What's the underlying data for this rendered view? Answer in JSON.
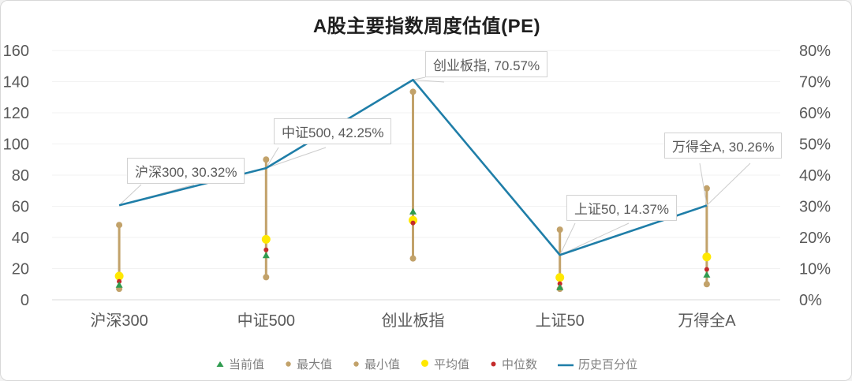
{
  "window": {
    "background": "#ffffff",
    "border_color": "#d8d8d8"
  },
  "chart_data": {
    "type": "combo-range-scatter-line",
    "title": "A股主要指数周度估值(PE)",
    "categories": [
      "沪深300",
      "中证500",
      "创业板指",
      "上证50",
      "万得全A"
    ],
    "left_axis": {
      "min": 0,
      "max": 160,
      "step": 20,
      "tick_labels": [
        "160",
        "140",
        "120",
        "100",
        "80",
        "60",
        "40",
        "20",
        "0"
      ]
    },
    "right_axis": {
      "min": 0,
      "max": 80,
      "step": 10,
      "tick_labels": [
        "80%",
        "70%",
        "60%",
        "50%",
        "40%",
        "30%",
        "20%",
        "10%",
        "0%"
      ]
    },
    "series": [
      {
        "name": "当前值",
        "marker": "triangle",
        "color": "#2F9B4F",
        "axis": "left",
        "values": [
          9.5,
          28.5,
          56.5,
          8,
          16
        ]
      },
      {
        "name": "最大值",
        "marker": "circle",
        "color": "#C2A26A",
        "axis": "left",
        "values": [
          48,
          90,
          133.5,
          45,
          71.5
        ]
      },
      {
        "name": "最小值",
        "marker": "circle",
        "color": "#C2A26A",
        "axis": "left",
        "values": [
          7,
          14.5,
          26.5,
          7,
          10
        ]
      },
      {
        "name": "平均值",
        "marker": "circle-large",
        "color": "#FFE800",
        "axis": "left",
        "values": [
          15.2,
          38.8,
          51,
          14.3,
          27.5
        ]
      },
      {
        "name": "中位数",
        "marker": "dot",
        "color": "#C42B2B",
        "axis": "left",
        "values": [
          11.8,
          32,
          49.3,
          10.3,
          19.5
        ]
      },
      {
        "name": "历史百分位",
        "marker": "line",
        "color": "#1F7EA8",
        "axis": "right",
        "values": [
          30.32,
          42.25,
          70.57,
          14.37,
          30.26
        ]
      }
    ],
    "range_bar": {
      "high_series": "最大值",
      "low_series": "最小值",
      "color": "#C2A26A"
    },
    "data_labels": [
      "沪深300, 30.32%",
      "中证500, 42.25%",
      "创业板指, 70.57%",
      "上证50, 14.37%",
      "万得全A, 30.26%"
    ],
    "legend": [
      "当前值",
      "最大值",
      "最小值",
      "平均值",
      "中位数",
      "历史百分位"
    ],
    "grid": {
      "color": "#f2f2f2",
      "zero_line_color": "#d9d9d9"
    },
    "axis_text_color": "#595959",
    "legend_text_color": "#7f7f7f"
  }
}
